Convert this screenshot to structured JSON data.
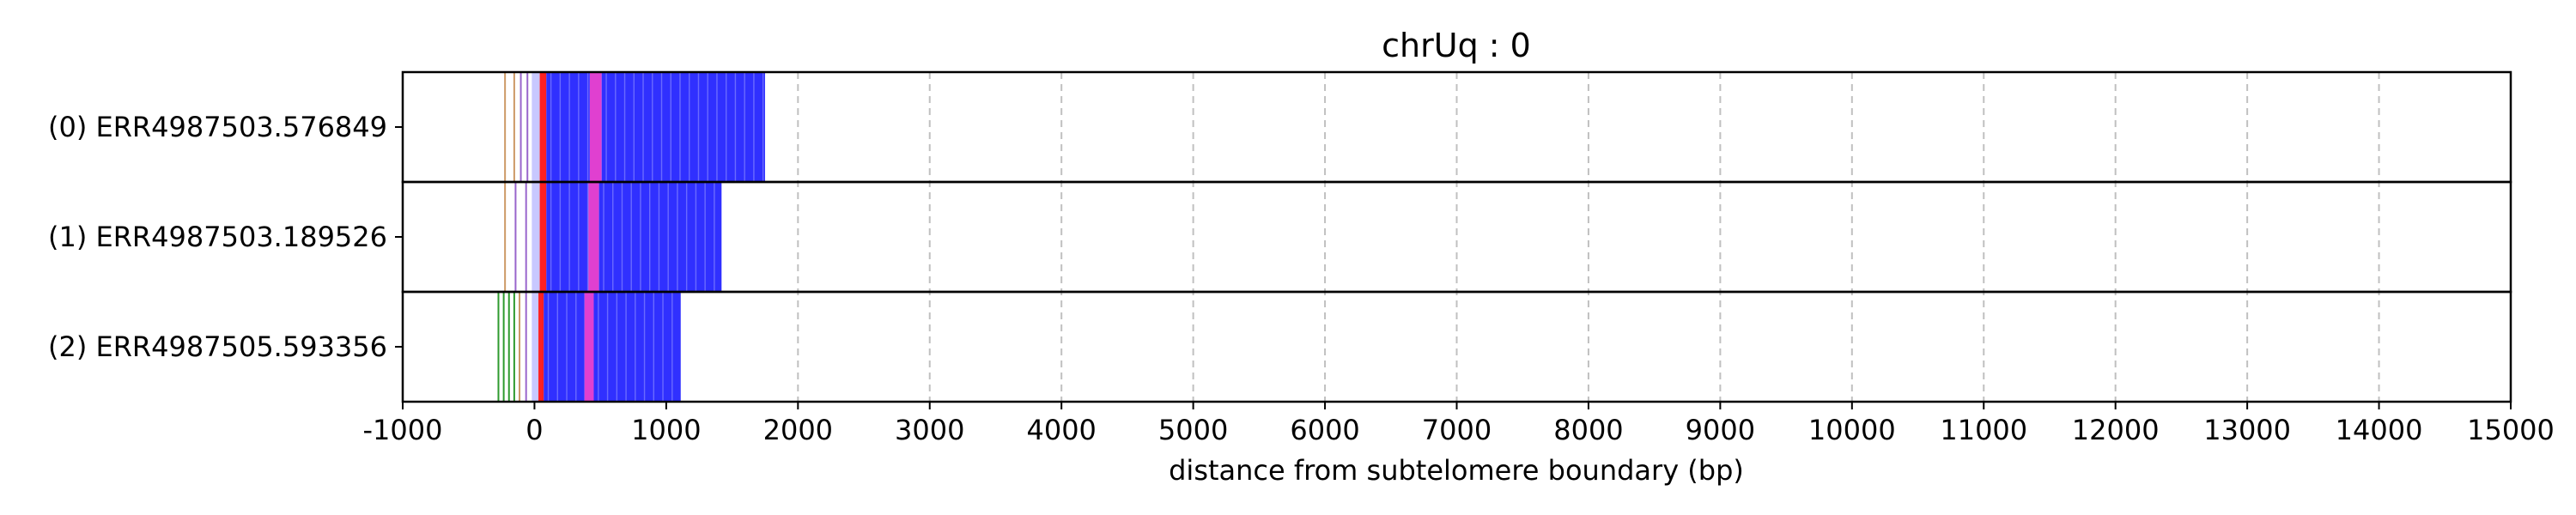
{
  "chart_data": {
    "type": "bar",
    "title": "chrUq : 0",
    "xlabel": "distance from subtelomere boundary (bp)",
    "ylabel": "",
    "xlim": [
      -1000,
      15000
    ],
    "xticks": [
      -1000,
      0,
      1000,
      2000,
      3000,
      4000,
      5000,
      6000,
      7000,
      8000,
      9000,
      10000,
      11000,
      12000,
      13000,
      14000,
      15000
    ],
    "grid": "vertical dashed",
    "rows": [
      {
        "label": "(0) ERR4987503.576849",
        "start": -230,
        "end": 1750
      },
      {
        "label": "(1) ERR4987503.189526",
        "start": -230,
        "end": 1420
      },
      {
        "label": "(2) ERR4987505.593356",
        "start": -280,
        "end": 1110
      }
    ],
    "colors": {
      "main": "#3030ff",
      "red": "#ff2020",
      "pink": "#e040d0",
      "light": "#c8c8ff",
      "green": "#2e9a2e",
      "purple": "#9966cc",
      "tan": "#cc9966"
    },
    "segments": [
      [
        {
          "start": -230,
          "end": -220,
          "color": "tan"
        },
        {
          "start": -160,
          "end": -150,
          "color": "tan"
        },
        {
          "start": -110,
          "end": -100,
          "color": "purple"
        },
        {
          "start": -60,
          "end": -50,
          "color": "purple"
        },
        {
          "start": -20,
          "end": 40,
          "color": "light"
        },
        {
          "start": 40,
          "end": 90,
          "color": "red"
        },
        {
          "start": 90,
          "end": 420,
          "color": "main"
        },
        {
          "start": 420,
          "end": 510,
          "color": "pink"
        },
        {
          "start": 510,
          "end": 1750,
          "color": "main"
        }
      ],
      [
        {
          "start": -230,
          "end": -220,
          "color": "tan"
        },
        {
          "start": -150,
          "end": -140,
          "color": "purple"
        },
        {
          "start": -70,
          "end": -60,
          "color": "purple"
        },
        {
          "start": -20,
          "end": 40,
          "color": "light"
        },
        {
          "start": 40,
          "end": 90,
          "color": "red"
        },
        {
          "start": 90,
          "end": 410,
          "color": "main"
        },
        {
          "start": 410,
          "end": 490,
          "color": "pink"
        },
        {
          "start": 490,
          "end": 1420,
          "color": "main"
        }
      ],
      [
        {
          "start": -280,
          "end": -270,
          "color": "green"
        },
        {
          "start": -240,
          "end": -230,
          "color": "green"
        },
        {
          "start": -200,
          "end": -190,
          "color": "green"
        },
        {
          "start": -160,
          "end": -150,
          "color": "green"
        },
        {
          "start": -120,
          "end": -110,
          "color": "tan"
        },
        {
          "start": -70,
          "end": -60,
          "color": "purple"
        },
        {
          "start": -20,
          "end": 30,
          "color": "light"
        },
        {
          "start": 30,
          "end": 70,
          "color": "red"
        },
        {
          "start": 70,
          "end": 380,
          "color": "main"
        },
        {
          "start": 380,
          "end": 450,
          "color": "pink"
        },
        {
          "start": 450,
          "end": 1110,
          "color": "main"
        }
      ]
    ]
  }
}
